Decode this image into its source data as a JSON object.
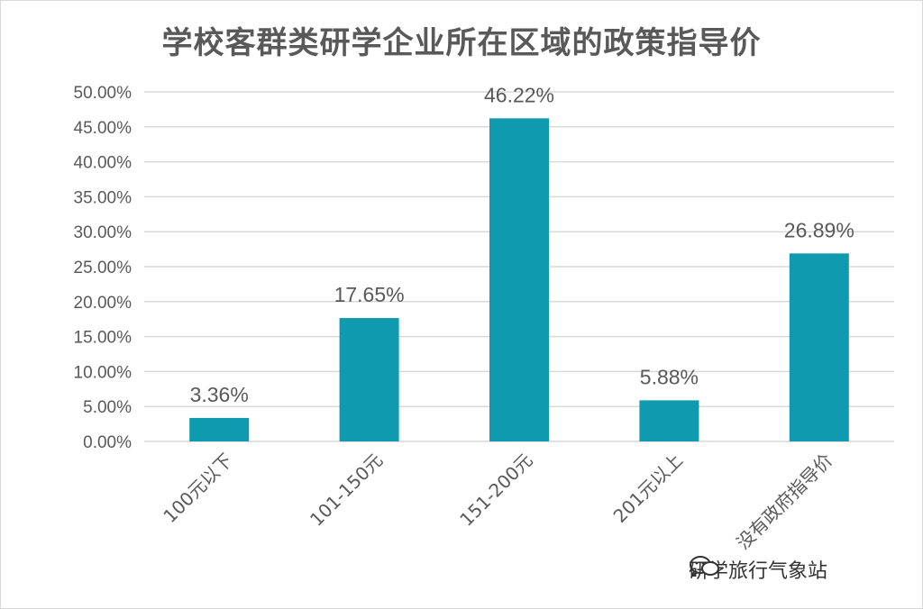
{
  "chart_data": {
    "type": "bar",
    "title": "学校客群类研学企业所在区域的政策指导价",
    "xlabel": "",
    "ylabel": "",
    "categories": [
      "100元以下",
      "101-150元",
      "151-200元",
      "201元以上",
      "没有政府指导价"
    ],
    "values": [
      3.36,
      17.65,
      46.22,
      5.88,
      26.89
    ],
    "data_labels": [
      "3.36%",
      "17.65%",
      "46.22%",
      "5.88%",
      "26.89%"
    ],
    "ylim": [
      0,
      50
    ],
    "yticks": [
      0,
      5,
      10,
      15,
      20,
      25,
      30,
      35,
      40,
      45,
      50
    ],
    "ytick_labels": [
      "0.00%",
      "5.00%",
      "10.00%",
      "15.00%",
      "20.00%",
      "25.00%",
      "30.00%",
      "35.00%",
      "40.00%",
      "45.00%",
      "50.00%"
    ],
    "grid": true,
    "legend": "none",
    "colors": {
      "bar": "#0f9aaf",
      "grid": "#d9d9d9",
      "text": "#595959"
    }
  },
  "watermark": {
    "text": "研学旅行气象站",
    "icon": "wechat-icon"
  }
}
